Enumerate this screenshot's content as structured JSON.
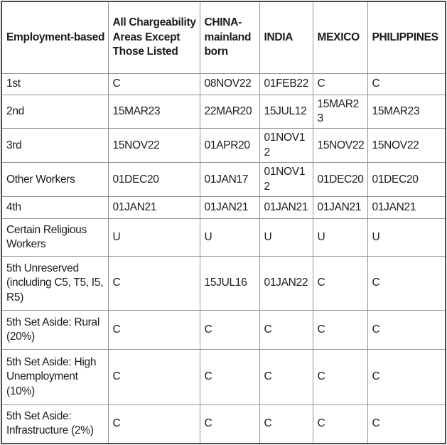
{
  "colors": {
    "background": "#ffffff",
    "text": "#1b1b1b",
    "border_outer": "#4e4e4e",
    "border_inner": "#929292"
  },
  "chart_data": {
    "type": "table",
    "columns": [
      "Employment-based",
      "All Chargeability Areas Except Those Listed",
      "CHINA-mainland born",
      "INDIA",
      "MEXICO",
      "PHILIPPINES"
    ],
    "rows": [
      {
        "category": "1st",
        "values": [
          "C",
          "08NOV22",
          "01FEB22",
          "C",
          "C"
        ]
      },
      {
        "category": "2nd",
        "values": [
          "15MAR23",
          "22MAR20",
          "15JUL12",
          "15MAR23",
          "15MAR23"
        ]
      },
      {
        "category": "3rd",
        "values": [
          "15NOV22",
          "01APR20",
          "01NOV12",
          "15NOV22",
          "15NOV22"
        ]
      },
      {
        "category": "Other Workers",
        "values": [
          "01DEC20",
          "01JAN17",
          "01NOV12",
          "01DEC20",
          "01DEC20"
        ]
      },
      {
        "category": "4th",
        "values": [
          "01JAN21",
          "01JAN21",
          "01JAN21",
          "01JAN21",
          "01JAN21"
        ]
      },
      {
        "category": "Certain Religious Workers",
        "values": [
          "U",
          "U",
          "U",
          "U",
          "U"
        ]
      },
      {
        "category": "5th Unreserved (including C5, T5, I5, R5)",
        "values": [
          "C",
          "15JUL16",
          "01JAN22",
          "C",
          "C"
        ]
      },
      {
        "category": "5th Set Aside: Rural (20%)",
        "values": [
          "C",
          "C",
          "C",
          "C",
          "C"
        ]
      },
      {
        "category": "5th Set Aside: High Unemployment (10%)",
        "values": [
          "C",
          "C",
          "C",
          "C",
          "C"
        ]
      },
      {
        "category": "5th Set Aside: Infrastructure (2%)",
        "values": [
          "C",
          "C",
          "C",
          "C",
          "C"
        ]
      }
    ]
  }
}
